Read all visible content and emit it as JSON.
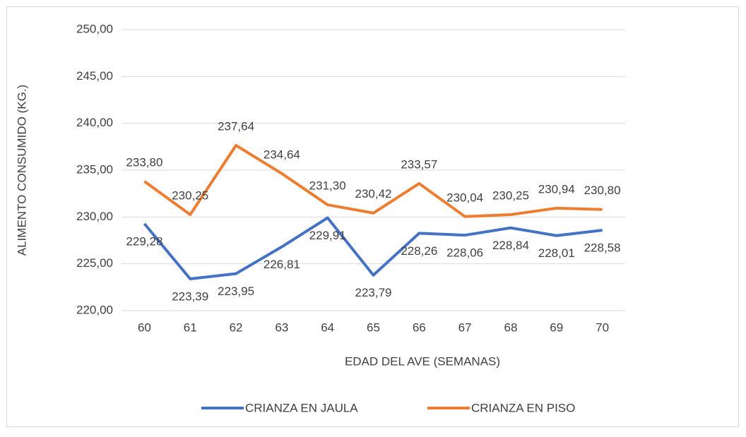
{
  "chart_data": {
    "type": "line",
    "categories": [
      "60",
      "61",
      "62",
      "63",
      "64",
      "65",
      "66",
      "67",
      "68",
      "69",
      "70"
    ],
    "series": [
      {
        "name": "CRIANZA EN JAULA",
        "color": "#4472c4",
        "values": [
          229.28,
          223.39,
          223.95,
          226.81,
          229.91,
          223.79,
          228.26,
          228.06,
          228.84,
          228.01,
          228.58
        ],
        "value_labels": [
          "229,28",
          "223,39",
          "223,95",
          "226,81",
          "229,91",
          "223,79",
          "228,26",
          "228,06",
          "228,84",
          "228,01",
          "228,58"
        ]
      },
      {
        "name": "CRIANZA EN PISO",
        "color": "#ed7d31",
        "values": [
          233.8,
          230.25,
          237.64,
          234.64,
          231.3,
          230.42,
          233.57,
          230.04,
          230.25,
          230.94,
          230.8
        ],
        "value_labels": [
          "233,80",
          "230,25",
          "237,64",
          "234,64",
          "231,30",
          "230,42",
          "233,57",
          "230,04",
          "230,25",
          "230,94",
          "230,80"
        ]
      }
    ],
    "x_label": "EDAD DEL AVE (SEMANAS)",
    "y_label": "ALIMENTO CONSUMIDO (KG.)",
    "ylim": [
      220,
      250
    ],
    "yticks": [
      {
        "value": 220,
        "label": "220,00"
      },
      {
        "value": 225,
        "label": "225,00"
      },
      {
        "value": 230,
        "label": "230,00"
      },
      {
        "value": 235,
        "label": "235,00"
      },
      {
        "value": 240,
        "label": "240,00"
      },
      {
        "value": 245,
        "label": "245,00"
      },
      {
        "value": 250,
        "label": "250,00"
      }
    ],
    "grid": true,
    "legend": "bottom"
  }
}
